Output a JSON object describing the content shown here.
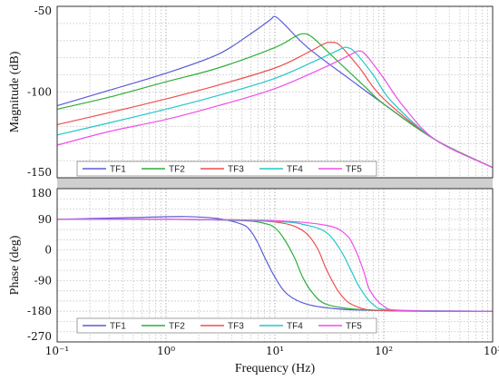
{
  "chart_data": [
    {
      "type": "line",
      "ylabel": "Magnitude (dB)",
      "xscale": "log",
      "xlim": [
        0.1,
        1000
      ],
      "ylim": [
        -150,
        -50
      ],
      "yticks": [
        "-50",
        "-100",
        "-150"
      ],
      "grid": true,
      "legend_position": "bottom",
      "series": [
        {
          "name": "TF1",
          "color": "#5b5bd6",
          "points": [
            [
              0.1,
              -108
            ],
            [
              0.3,
              -99
            ],
            [
              1,
              -89
            ],
            [
              3,
              -78
            ],
            [
              6,
              -66
            ],
            [
              9,
              -58
            ],
            [
              10,
              -56
            ],
            [
              12,
              -60
            ],
            [
              20,
              -74
            ],
            [
              50,
              -93
            ],
            [
              100,
              -107
            ],
            [
              300,
              -128
            ],
            [
              1000,
              -144
            ]
          ]
        },
        {
          "name": "TF2",
          "color": "#2fae3a",
          "points": [
            [
              0.1,
              -110
            ],
            [
              0.3,
              -103
            ],
            [
              1,
              -94
            ],
            [
              3,
              -86
            ],
            [
              10,
              -74
            ],
            [
              15,
              -68
            ],
            [
              18,
              -66
            ],
            [
              22,
              -68
            ],
            [
              35,
              -80
            ],
            [
              70,
              -98
            ],
            [
              100,
              -107
            ],
            [
              300,
              -128
            ],
            [
              1000,
              -144
            ]
          ]
        },
        {
          "name": "TF3",
          "color": "#ef4f4f",
          "points": [
            [
              0.1,
              -119
            ],
            [
              0.3,
              -112
            ],
            [
              1,
              -104
            ],
            [
              3,
              -96
            ],
            [
              10,
              -86
            ],
            [
              20,
              -77
            ],
            [
              28,
              -72
            ],
            [
              33,
              -71
            ],
            [
              40,
              -73
            ],
            [
              60,
              -86
            ],
            [
              100,
              -104
            ],
            [
              300,
              -128
            ],
            [
              1000,
              -144
            ]
          ]
        },
        {
          "name": "TF4",
          "color": "#22c7c7",
          "points": [
            [
              0.1,
              -125
            ],
            [
              0.3,
              -118
            ],
            [
              1,
              -110
            ],
            [
              3,
              -102
            ],
            [
              10,
              -92
            ],
            [
              25,
              -81
            ],
            [
              40,
              -75
            ],
            [
              46,
              -74
            ],
            [
              55,
              -77
            ],
            [
              80,
              -90
            ],
            [
              120,
              -106
            ],
            [
              300,
              -128
            ],
            [
              1000,
              -144
            ]
          ]
        },
        {
          "name": "TF5",
          "color": "#ee4fe8",
          "points": [
            [
              0.1,
              -131
            ],
            [
              0.3,
              -123
            ],
            [
              1,
              -116
            ],
            [
              3,
              -108
            ],
            [
              10,
              -98
            ],
            [
              30,
              -85
            ],
            [
              50,
              -78
            ],
            [
              60,
              -76
            ],
            [
              70,
              -79
            ],
            [
              100,
              -92
            ],
            [
              150,
              -108
            ],
            [
              300,
              -128
            ],
            [
              1000,
              -144
            ]
          ]
        }
      ]
    },
    {
      "type": "line",
      "xlabel": "Frequency (Hz)",
      "ylabel": "Phase (deg)",
      "xscale": "log",
      "xlim": [
        0.1,
        1000
      ],
      "ylim": [
        -270,
        180
      ],
      "yticks": [
        "180",
        "90",
        "0",
        "-90",
        "-180",
        "-270"
      ],
      "xticks": [
        "10⁻¹",
        "10⁰",
        "10¹",
        "10²",
        "10³"
      ],
      "grid": true,
      "legend_position": "bottom",
      "series": [
        {
          "name": "TF1",
          "color": "#5b5bd6",
          "points": [
            [
              0.1,
              90
            ],
            [
              0.5,
              95
            ],
            [
              1.5,
              98
            ],
            [
              3,
              92
            ],
            [
              5,
              75
            ],
            [
              6,
              55
            ],
            [
              7,
              20
            ],
            [
              8,
              -20
            ],
            [
              10,
              -80
            ],
            [
              13,
              -130
            ],
            [
              20,
              -160
            ],
            [
              40,
              -174
            ],
            [
              100,
              -178
            ],
            [
              1000,
              -180
            ]
          ]
        },
        {
          "name": "TF2",
          "color": "#2fae3a",
          "points": [
            [
              0.1,
              90
            ],
            [
              1,
              90
            ],
            [
              5,
              86
            ],
            [
              8,
              78
            ],
            [
              10,
              65
            ],
            [
              12,
              35
            ],
            [
              15,
              -20
            ],
            [
              18,
              -80
            ],
            [
              22,
              -125
            ],
            [
              30,
              -160
            ],
            [
              60,
              -175
            ],
            [
              200,
              -180
            ],
            [
              1000,
              -180
            ]
          ]
        },
        {
          "name": "TF3",
          "color": "#ef4f4f",
          "points": [
            [
              0.1,
              90
            ],
            [
              1,
              90
            ],
            [
              5,
              88
            ],
            [
              10,
              82
            ],
            [
              15,
              70
            ],
            [
              20,
              45
            ],
            [
              25,
              0
            ],
            [
              30,
              -60
            ],
            [
              40,
              -130
            ],
            [
              55,
              -165
            ],
            [
              100,
              -178
            ],
            [
              1000,
              -180
            ]
          ]
        },
        {
          "name": "TF4",
          "color": "#22c7c7",
          "points": [
            [
              0.1,
              90
            ],
            [
              1,
              90
            ],
            [
              10,
              84
            ],
            [
              20,
              72
            ],
            [
              30,
              50
            ],
            [
              40,
              0
            ],
            [
              50,
              -60
            ],
            [
              60,
              -110
            ],
            [
              80,
              -160
            ],
            [
              120,
              -176
            ],
            [
              1000,
              -180
            ]
          ]
        },
        {
          "name": "TF5",
          "color": "#ee4fe8",
          "points": [
            [
              0.1,
              90
            ],
            [
              1,
              90
            ],
            [
              10,
              86
            ],
            [
              30,
              72
            ],
            [
              45,
              45
            ],
            [
              55,
              0
            ],
            [
              65,
              -60
            ],
            [
              75,
              -120
            ],
            [
              100,
              -165
            ],
            [
              150,
              -178
            ],
            [
              1000,
              -180
            ]
          ]
        }
      ]
    }
  ]
}
